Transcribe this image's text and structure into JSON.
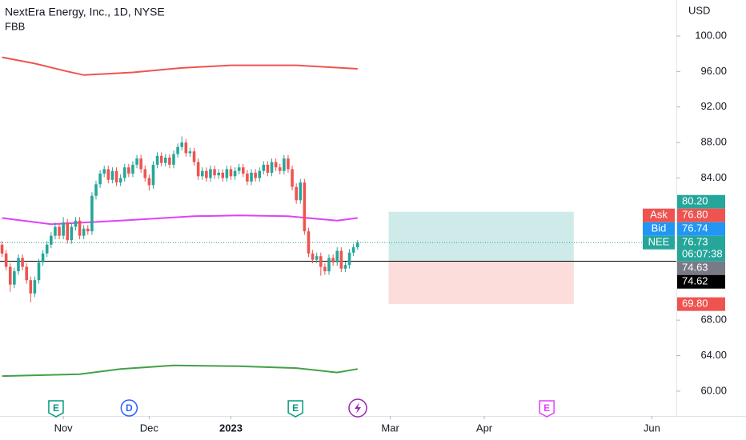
{
  "chart_data": {
    "type": "candlestick",
    "title": "NextEra Energy, Inc., 1D, NYSE",
    "indicator": "FBB",
    "currency": "USD",
    "up_color": "#26a69a",
    "down_color": "#ef5350",
    "xlim": [
      -0.5,
      165
    ],
    "xticks": [
      {
        "value": 15,
        "label": "Nov"
      },
      {
        "value": 36,
        "label": "Dec"
      },
      {
        "value": 56,
        "label": "2023"
      },
      {
        "value": 95,
        "label": "Mar"
      },
      {
        "value": 118,
        "label": "Apr"
      },
      {
        "value": 159,
        "label": "Jun"
      }
    ],
    "ylim": [
      57.2,
      104.05
    ],
    "yticks": [
      {
        "value": 100,
        "label": "100.00"
      },
      {
        "value": 96,
        "label": "96.00"
      },
      {
        "value": 92,
        "label": "92.00"
      },
      {
        "value": 88,
        "label": "88.00"
      },
      {
        "value": 84,
        "label": "84.00"
      },
      {
        "value": 68,
        "label": "68.00"
      },
      {
        "value": 64,
        "label": "64.00"
      },
      {
        "value": 60,
        "label": "60.00"
      }
    ],
    "open": [
      76.5,
      75.5,
      74.0,
      72.0,
      73.5,
      75.0,
      74.0,
      72.5,
      71.0,
      72.5,
      74.5,
      75.5,
      76.5,
      77.5,
      78.5,
      77.5,
      79.0,
      77.0,
      78.5,
      79.2,
      77.5,
      78.3,
      78.0,
      82.0,
      83.3,
      84.5,
      85.0,
      83.8,
      84.8,
      83.5,
      84.0,
      85.2,
      84.5,
      85.5,
      86.2,
      85.0,
      84.0,
      83.2,
      85.5,
      86.5,
      85.7,
      86.3,
      85.5,
      86.7,
      87.5,
      88.0,
      86.8,
      87.0,
      85.8,
      84.2,
      84.8,
      84.0,
      85.0,
      84.3,
      84.6,
      84.0,
      85.0,
      84.2,
      84.8,
      85.2,
      84.5,
      83.6,
      84.6,
      84.0,
      84.8,
      85.5,
      84.6,
      85.8,
      85.2,
      84.8,
      86.2,
      85.0,
      83.0,
      81.5,
      83.5,
      78.0,
      75.5,
      74.8,
      75.2,
      74.0,
      73.5,
      75.0,
      74.5,
      75.8,
      73.8,
      74.2,
      75.6,
      76.2
    ],
    "high": [
      76.9,
      75.9,
      74.4,
      73.9,
      75.4,
      75.4,
      74.4,
      72.9,
      72.9,
      74.9,
      75.9,
      76.9,
      77.9,
      79.0,
      78.9,
      79.6,
      79.4,
      78.9,
      79.6,
      79.6,
      78.7,
      78.7,
      82.4,
      83.7,
      84.9,
      85.4,
      85.4,
      85.2,
      85.2,
      84.4,
      85.6,
      85.6,
      85.9,
      86.6,
      86.6,
      85.4,
      84.4,
      85.9,
      86.9,
      86.9,
      86.7,
      86.7,
      87.1,
      87.9,
      88.7,
      88.4,
      87.4,
      87.4,
      86.2,
      85.2,
      85.2,
      85.4,
      85.4,
      85.0,
      85.0,
      85.4,
      85.4,
      85.2,
      85.6,
      85.6,
      84.9,
      85.0,
      85.0,
      85.2,
      85.9,
      85.9,
      86.2,
      86.2,
      85.6,
      86.6,
      86.6,
      85.4,
      83.4,
      83.9,
      83.9,
      78.4,
      75.9,
      75.6,
      75.6,
      74.4,
      75.4,
      75.4,
      76.2,
      76.2,
      74.6,
      76.0,
      76.6,
      77.0
    ],
    "low": [
      75.1,
      73.6,
      71.2,
      71.6,
      73.1,
      73.6,
      72.1,
      70.0,
      70.6,
      72.1,
      74.1,
      75.1,
      76.1,
      77.1,
      77.1,
      77.1,
      76.6,
      76.6,
      78.1,
      77.1,
      77.1,
      77.6,
      77.6,
      81.6,
      82.9,
      84.1,
      83.4,
      83.4,
      83.1,
      83.1,
      83.6,
      84.1,
      84.1,
      85.1,
      84.6,
      83.6,
      82.6,
      82.8,
      85.1,
      85.3,
      85.3,
      85.1,
      85.1,
      86.3,
      87.1,
      86.4,
      86.4,
      85.4,
      83.8,
      83.8,
      83.6,
      83.6,
      83.9,
      83.9,
      83.6,
      83.6,
      83.8,
      83.8,
      84.4,
      84.1,
      83.2,
      83.2,
      83.6,
      83.6,
      84.4,
      84.2,
      84.2,
      84.8,
      84.4,
      84.4,
      84.6,
      82.6,
      81.1,
      81.1,
      77.6,
      75.1,
      74.4,
      74.4,
      73.0,
      73.1,
      73.1,
      74.1,
      74.1,
      73.4,
      73.4,
      73.8,
      75.2,
      75.9
    ],
    "close": [
      75.5,
      74.0,
      72.0,
      73.5,
      75.0,
      74.0,
      72.5,
      71.0,
      72.5,
      74.5,
      75.5,
      76.5,
      77.5,
      78.5,
      77.5,
      79.0,
      77.0,
      78.5,
      79.2,
      77.5,
      78.3,
      78.0,
      82.0,
      83.3,
      84.5,
      85.0,
      83.8,
      84.8,
      83.5,
      84.0,
      85.2,
      84.5,
      85.5,
      86.2,
      85.0,
      84.0,
      83.2,
      85.5,
      86.5,
      85.7,
      86.3,
      85.5,
      86.7,
      87.5,
      88.0,
      86.8,
      87.0,
      85.8,
      84.2,
      84.8,
      84.0,
      85.0,
      84.3,
      84.6,
      84.0,
      85.0,
      84.2,
      84.8,
      85.2,
      84.5,
      83.6,
      84.6,
      84.0,
      84.8,
      85.5,
      84.6,
      85.8,
      85.2,
      84.8,
      86.2,
      85.0,
      83.0,
      81.5,
      83.5,
      78.0,
      75.5,
      74.8,
      75.2,
      74.0,
      73.5,
      75.0,
      74.5,
      75.8,
      73.8,
      74.2,
      75.6,
      76.2,
      76.73
    ],
    "bands": [
      {
        "color": "#ef5350",
        "x": [
          0,
          8,
          16,
          20,
          32,
          44,
          56,
          72,
          87
        ],
        "values": [
          97.6,
          96.9,
          96.0,
          95.6,
          95.9,
          96.4,
          96.7,
          96.7,
          96.3
        ]
      },
      {
        "color": "#e040fb",
        "x": [
          0,
          12,
          29,
          47,
          58,
          70,
          82,
          87
        ],
        "values": [
          79.5,
          78.8,
          79.2,
          79.7,
          79.8,
          79.7,
          79.2,
          79.5
        ]
      },
      {
        "color": "#43a047",
        "x": [
          0,
          19,
          29,
          42,
          58,
          72,
          82,
          87
        ],
        "values": [
          61.7,
          61.9,
          62.5,
          62.9,
          62.8,
          62.6,
          62.1,
          62.5
        ]
      }
    ],
    "position": {
      "x_start": 94.6,
      "x_end": 139.9,
      "entry": 74.63,
      "target": 80.2,
      "stop": 69.8,
      "profit_color": "#26a69a",
      "loss_color": "#ef5350"
    },
    "price_labels": [
      {
        "value": 80.2,
        "text": "80.20",
        "color": "#26a69a"
      },
      {
        "tag": "Ask",
        "value": 76.8,
        "text": "76.80",
        "color": "#ef5350"
      },
      {
        "tag": "Bid",
        "value": 76.74,
        "text": "76.74",
        "color": "#2196f3"
      },
      {
        "tag": "NEE",
        "value": 76.73,
        "text": "76.73",
        "sub": "06:07:38",
        "color": "#26a69a"
      },
      {
        "value": 74.63,
        "text": "74.63",
        "color": "#787b86"
      },
      {
        "value": 74.62,
        "text": "74.62",
        "color": "#000000"
      },
      {
        "value": 69.8,
        "text": "69.80",
        "color": "#ef5350"
      }
    ],
    "events": [
      {
        "x": 13.2,
        "label": "E",
        "color": "#089981",
        "shape": "square"
      },
      {
        "x": 31.1,
        "label": "D",
        "color": "#2962ff",
        "shape": "circle"
      },
      {
        "x": 71.8,
        "label": "E",
        "color": "#089981",
        "shape": "square"
      },
      {
        "x": 133.3,
        "label": "E",
        "color": "#e040fb",
        "shape": "square"
      }
    ]
  }
}
